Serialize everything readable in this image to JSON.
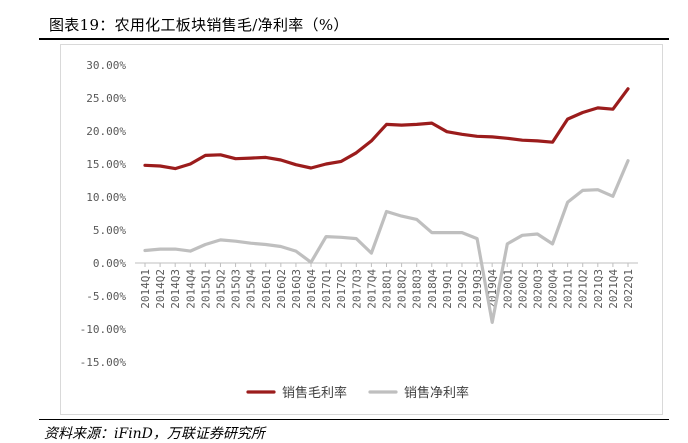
{
  "header": {
    "title": "图表19：农用化工板块销售毛/净利率（%）"
  },
  "footer": {
    "source": "资料来源：iFinD，万联证券研究所"
  },
  "chart_data": {
    "type": "line",
    "title": "",
    "xlabel": "",
    "ylabel": "",
    "ylim": [
      -15,
      30
    ],
    "y_ticks": [
      "30.00%",
      "25.00%",
      "20.00%",
      "15.00%",
      "10.00%",
      "5.00%",
      "0.00%",
      "-5.00%",
      "-10.00%",
      "-15.00%"
    ],
    "y_tick_values": [
      30,
      25,
      20,
      15,
      10,
      5,
      0,
      -5,
      -10,
      -15
    ],
    "categories": [
      "2014Q1",
      "2014Q2",
      "2014Q3",
      "2014Q4",
      "2015Q1",
      "2015Q2",
      "2015Q3",
      "2015Q4",
      "2016Q1",
      "2016Q2",
      "2016Q3",
      "2016Q4",
      "2017Q1",
      "2017Q2",
      "2017Q3",
      "2017Q4",
      "2018Q1",
      "2018Q2",
      "2018Q3",
      "2018Q4",
      "2019Q1",
      "2019Q2",
      "2019Q3",
      "2019Q4",
      "2020Q1",
      "2020Q2",
      "2020Q3",
      "2020Q4",
      "2021Q1",
      "2021Q2",
      "2021Q3",
      "2021Q4",
      "2022Q1"
    ],
    "legend_position": "bottom",
    "grid": false,
    "series": [
      {
        "name": "销售毛利率",
        "color": "#9b1c1c",
        "values": [
          14.8,
          14.7,
          14.3,
          15.0,
          16.3,
          16.4,
          15.8,
          15.9,
          16.0,
          15.6,
          14.9,
          14.4,
          15.0,
          15.4,
          16.7,
          18.5,
          21.0,
          20.9,
          21.0,
          21.2,
          19.9,
          19.5,
          19.2,
          19.1,
          18.9,
          18.6,
          18.5,
          18.3,
          21.8,
          22.8,
          23.5,
          23.3,
          26.4
        ]
      },
      {
        "name": "销售净利率",
        "color": "#bfbfbf",
        "values": [
          1.9,
          2.1,
          2.1,
          1.8,
          2.8,
          3.5,
          3.3,
          3.0,
          2.8,
          2.5,
          1.8,
          0.1,
          4.0,
          3.9,
          3.7,
          1.5,
          7.8,
          7.1,
          6.6,
          4.6,
          4.6,
          4.6,
          3.7,
          -9.0,
          2.9,
          4.2,
          4.4,
          2.9,
          9.2,
          11.0,
          11.1,
          10.1,
          15.5
        ]
      }
    ]
  }
}
